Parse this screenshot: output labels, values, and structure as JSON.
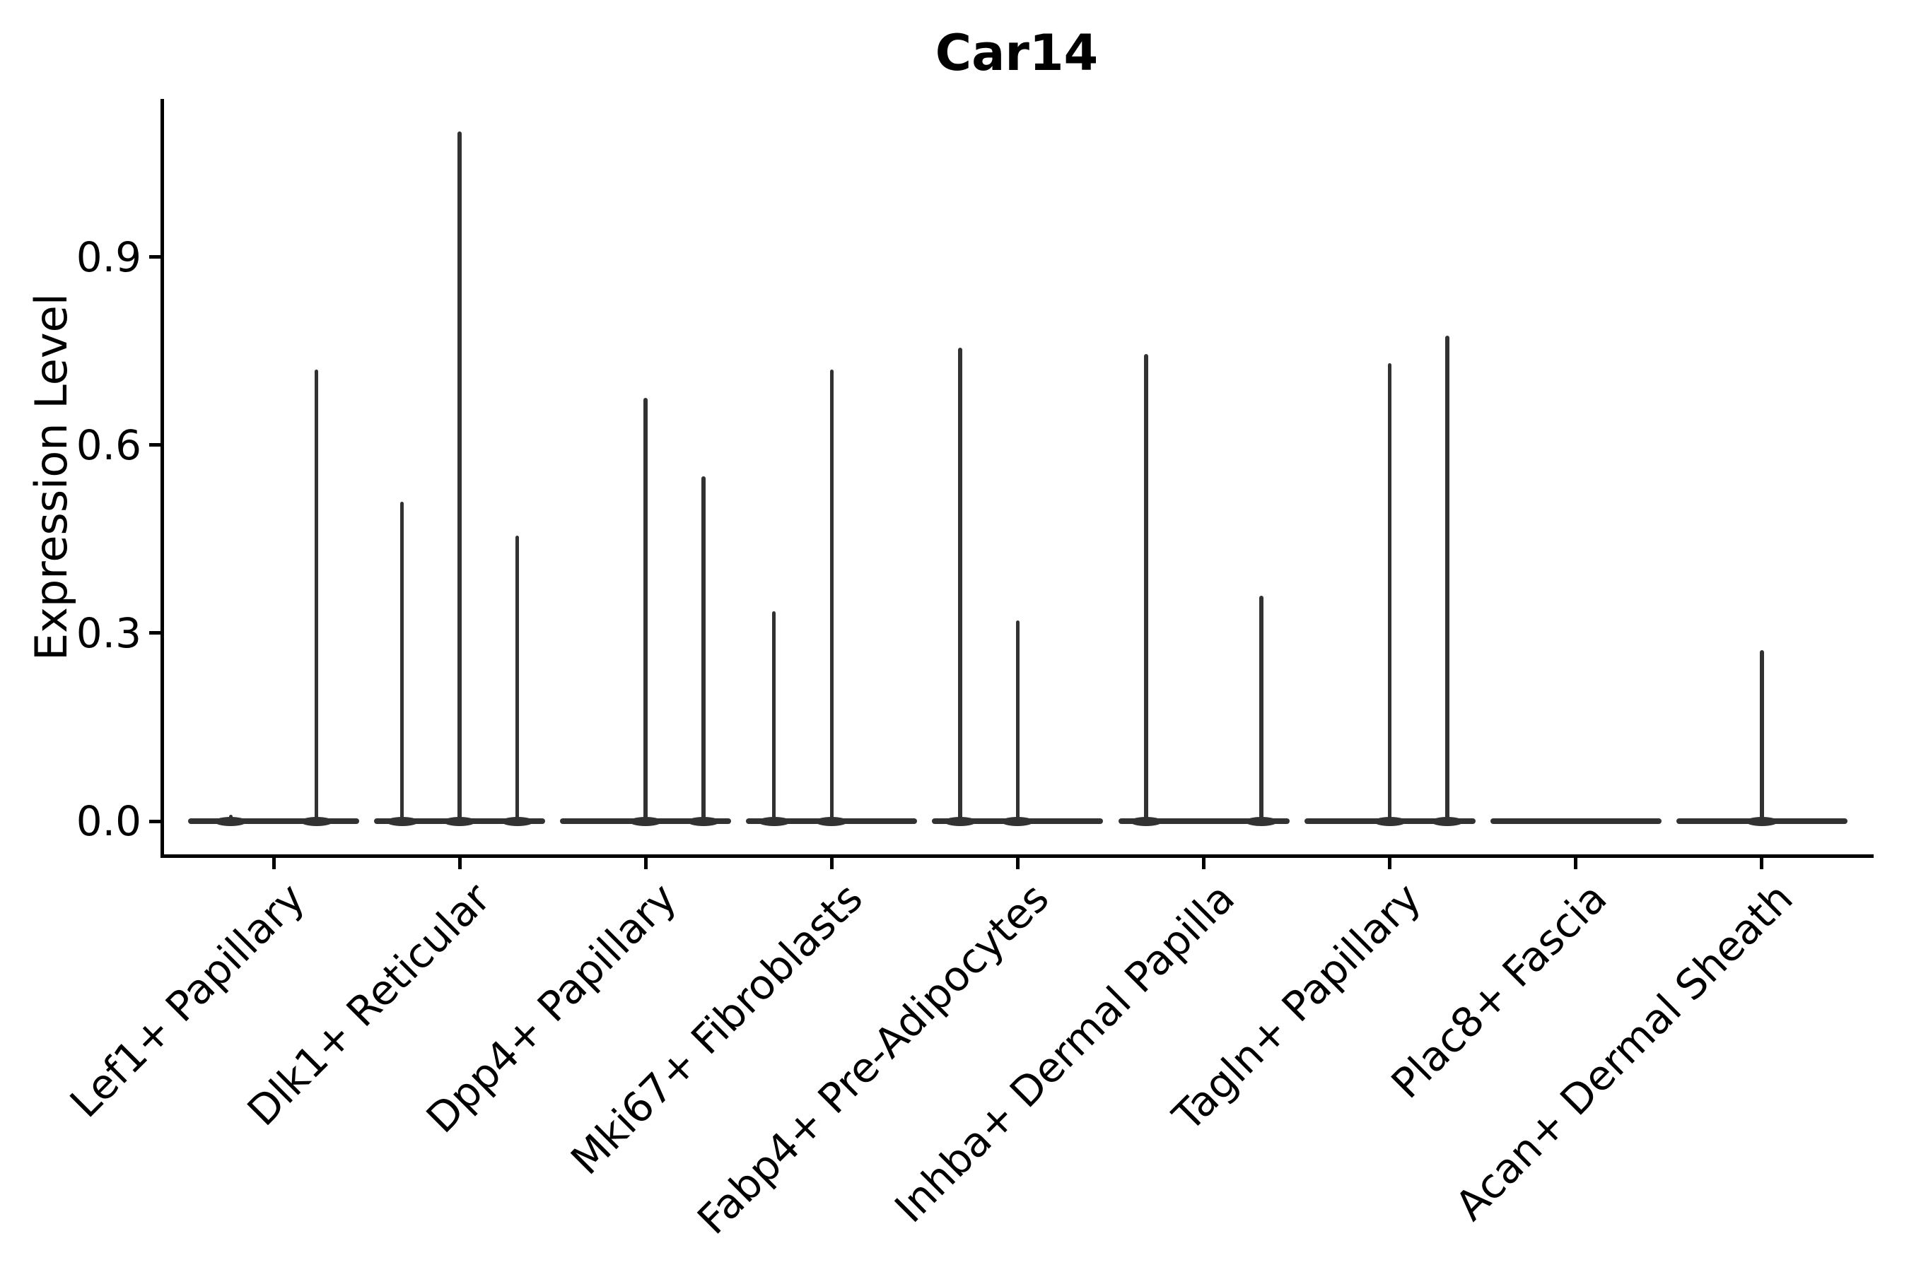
{
  "title": "Car14",
  "y_axis": {
    "label": "Expression Level",
    "tick_labels": [
      "0.0",
      "0.3",
      "0.6",
      "0.9"
    ]
  },
  "x_axis": {
    "tick_labels": [
      "Lef1+ Papillary",
      "Dlk1+ Reticular",
      "Dpp4+ Papillary",
      "Mki67+ Fibroblasts",
      "Fabp4+ Pre-Adipocytes",
      "Inhba+ Dermal Papilla",
      "Tagln+ Papillary",
      "Plac8+ Fascia",
      "Acan+ Dermal Sheath"
    ]
  },
  "colors": {
    "violin": "#323232",
    "axis": "#000000",
    "text": "#000000",
    "background": "#ffffff"
  },
  "chart_data": {
    "type": "violin",
    "title": "Car14",
    "xlabel": "",
    "ylabel": "Expression Level",
    "ylim": [
      0,
      1.16
    ],
    "yticks": [
      0.0,
      0.3,
      0.6,
      0.9
    ],
    "grid": false,
    "legend_position": "none",
    "description": "Seurat-style violin plot of Car14 expression across fibroblast subtypes; each category shows a wide flat density at 0 with thin vertical density tails (peak expression) at sub-violin positions.",
    "categories": [
      "Lef1+ Papillary",
      "Dlk1+ Reticular",
      "Dpp4+ Papillary",
      "Mki67+ Fibroblasts",
      "Fabp4+ Pre-Adipocytes",
      "Inhba+ Dermal Papilla",
      "Tagln+ Papillary",
      "Plac8+ Fascia",
      "Acan+ Dermal Sheath"
    ],
    "baseline_value": 0.0,
    "violin_width_frac": 0.92,
    "violins": [
      {
        "category": "Lef1+ Papillary",
        "tails": [
          {
            "offset": -0.23,
            "peak": 0.01
          },
          {
            "offset": 0.23,
            "peak": 0.72
          }
        ]
      },
      {
        "category": "Dlk1+ Reticular",
        "tails": [
          {
            "offset": -0.31,
            "peak": 0.51
          },
          {
            "offset": 0.0,
            "peak": 1.1
          },
          {
            "offset": 0.31,
            "peak": 0.455
          }
        ]
      },
      {
        "category": "Dpp4+ Papillary",
        "tails": [
          {
            "offset": 0.0,
            "peak": 0.675
          },
          {
            "offset": 0.31,
            "peak": 0.55
          }
        ]
      },
      {
        "category": "Mki67+ Fibroblasts",
        "tails": [
          {
            "offset": -0.31,
            "peak": 0.335
          },
          {
            "offset": 0.0,
            "peak": 0.72
          }
        ]
      },
      {
        "category": "Fabp4+ Pre-Adipocytes",
        "tails": [
          {
            "offset": -0.31,
            "peak": 0.755
          },
          {
            "offset": 0.0,
            "peak": 0.32
          }
        ]
      },
      {
        "category": "Inhba+ Dermal Papilla",
        "tails": [
          {
            "offset": -0.31,
            "peak": 0.745
          },
          {
            "offset": 0.31,
            "peak": 0.36
          }
        ]
      },
      {
        "category": "Tagln+ Papillary",
        "tails": [
          {
            "offset": 0.0,
            "peak": 0.73
          },
          {
            "offset": 0.31,
            "peak": 0.775
          }
        ]
      },
      {
        "category": "Plac8+ Fascia",
        "tails": []
      },
      {
        "category": "Acan+ Dermal Sheath",
        "tails": [
          {
            "offset": 0.0,
            "peak": 0.273
          }
        ]
      }
    ]
  }
}
